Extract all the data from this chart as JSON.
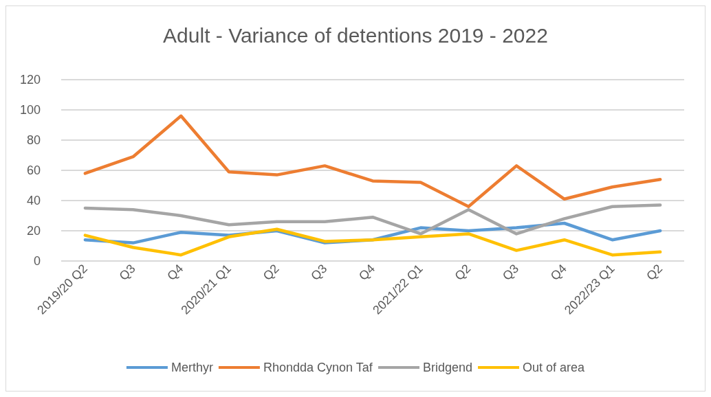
{
  "chart_data": {
    "type": "line",
    "title": "Adult - Variance of detentions 2019 - 2022",
    "categories": [
      "2019/20 Q2",
      "Q3",
      "Q4",
      "2020/21 Q1",
      "Q2",
      "Q3",
      "Q4",
      "2021/22 Q1",
      "Q2",
      "Q3",
      "Q4",
      "2022/23 Q1",
      "Q2"
    ],
    "series": [
      {
        "name": "Merthyr",
        "color": "#5b9bd5",
        "values": [
          14,
          12,
          19,
          17,
          20,
          12,
          14,
          22,
          20,
          22,
          25,
          14,
          20
        ]
      },
      {
        "name": "Rhondda Cynon Taf",
        "color": "#ed7d31",
        "values": [
          58,
          69,
          96,
          59,
          57,
          63,
          53,
          52,
          36,
          63,
          41,
          49,
          54
        ]
      },
      {
        "name": "Bridgend",
        "color": "#a5a5a5",
        "values": [
          35,
          34,
          30,
          24,
          26,
          26,
          29,
          18,
          34,
          18,
          28,
          36,
          37
        ]
      },
      {
        "name": "Out of area",
        "color": "#ffc000",
        "values": [
          17,
          9,
          4,
          16,
          21,
          13,
          14,
          16,
          18,
          7,
          14,
          4,
          6
        ]
      }
    ],
    "ylim": [
      0,
      120
    ],
    "yticks": [
      0,
      20,
      40,
      60,
      80,
      100,
      120
    ],
    "grid": "y",
    "legend": "bottom",
    "marker": "none",
    "line_style": "solid"
  }
}
